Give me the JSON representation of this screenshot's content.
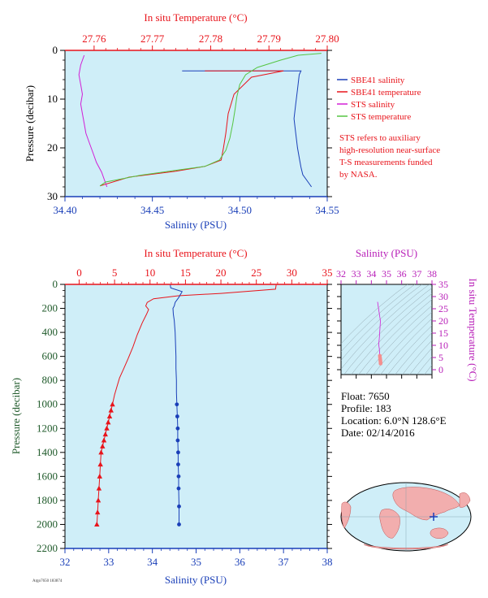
{
  "colors": {
    "plot_bg": "#cfeef8",
    "red": "#e8141b",
    "blue": "#1a3fb8",
    "magenta": "#d21fd6",
    "green": "#55c542",
    "pink": "#f48f8f",
    "dark_green": "#1f5a2a",
    "ts_axis": "#b81fb8"
  },
  "chart_data": [
    {
      "type": "line",
      "title": "",
      "top_xlabel": "In situ Temperature (°C)",
      "bottom_xlabel": "Salinity (PSU)",
      "ylabel": "Pressure (decibar)",
      "temp_range": [
        27.755,
        27.8
      ],
      "temp_ticks": [
        "27.76",
        "27.77",
        "27.78",
        "27.79",
        "27.80"
      ],
      "sal_range": [
        34.4,
        34.55
      ],
      "sal_ticks": [
        "34.40",
        "34.45",
        "34.50",
        "34.55"
      ],
      "pressure_range": [
        0,
        30
      ],
      "pressure_ticks": [
        "0",
        "10",
        "20",
        "30"
      ],
      "legend": {
        "entries": [
          "SBE41 salinity",
          "SBE41 temperature",
          "STS salinity",
          "STS temperature"
        ],
        "note": [
          "STS refers to auxiliary",
          "high-resolution near-surface",
          "T-S measurements funded",
          "by NASA."
        ]
      },
      "series": [
        {
          "name": "SBE41 salinity",
          "kind": "salinity",
          "color": "blue",
          "x": [
            34.467,
            34.535,
            34.534,
            34.533,
            34.532,
            34.531,
            34.532,
            34.533,
            34.534,
            34.535,
            34.536,
            34.538,
            34.54,
            34.541
          ],
          "y": [
            4.2,
            4.2,
            5.0,
            8.0,
            11.0,
            14.0,
            17.0,
            20.0,
            22.0,
            24.0,
            25.5,
            26.5,
            27.5,
            28.0
          ]
        },
        {
          "name": "SBE41 temperature",
          "kind": "temperature",
          "color": "red",
          "x": [
            27.779,
            27.7925,
            27.787,
            27.784,
            27.783,
            27.7826,
            27.7822,
            27.7818,
            27.779,
            27.774,
            27.766,
            27.761
          ],
          "y": [
            4.2,
            4.2,
            5.5,
            9.0,
            13.0,
            17.0,
            20.0,
            22.5,
            23.8,
            24.8,
            26.0,
            27.8
          ]
        },
        {
          "name": "STS salinity",
          "kind": "salinity",
          "color": "magenta",
          "x": [
            34.411,
            34.409,
            34.408,
            34.409,
            34.41,
            34.409,
            34.41,
            34.411,
            34.412,
            34.414,
            34.416,
            34.418,
            34.421,
            34.423,
            34.424
          ],
          "y": [
            1.0,
            3.0,
            5.0,
            7.0,
            9.0,
            11.0,
            13.0,
            15.0,
            17.0,
            19.0,
            21.0,
            23.0,
            25.0,
            27.0,
            28.0
          ]
        },
        {
          "name": "STS temperature",
          "kind": "temperature",
          "color": "green",
          "x": [
            27.799,
            27.795,
            27.792,
            27.788,
            27.786,
            27.785,
            27.7845,
            27.7842,
            27.7838,
            27.7833,
            27.7826,
            27.7815,
            27.779,
            27.774,
            27.768,
            27.762,
            27.761
          ],
          "y": [
            0.6,
            1.0,
            2.0,
            3.5,
            5.0,
            7.0,
            9.5,
            12.0,
            15.0,
            18.0,
            20.5,
            22.5,
            23.8,
            24.6,
            25.6,
            27.0,
            27.8
          ]
        }
      ]
    },
    {
      "type": "line",
      "title": "",
      "top_xlabel": "In situ Temperature (°C)",
      "bottom_xlabel": "Salinity (PSU)",
      "ylabel": "Pressure (decibar)",
      "temp_range": [
        -2,
        35
      ],
      "temp_ticks": [
        "0",
        "5",
        "10",
        "15",
        "20",
        "25",
        "30",
        "35"
      ],
      "sal_range": [
        32,
        38
      ],
      "sal_ticks": [
        "32",
        "33",
        "34",
        "35",
        "36",
        "37",
        "38"
      ],
      "pressure_range": [
        0,
        2200
      ],
      "pressure_ticks": [
        "0",
        "200",
        "400",
        "600",
        "800",
        "1000",
        "1200",
        "1400",
        "1600",
        "1800",
        "2000",
        "2200"
      ],
      "series": [
        {
          "name": "Temperature",
          "kind": "temperature",
          "color": "red",
          "marker": "triangle-from",
          "x": [
            27.8,
            27.7,
            20.0,
            14.0,
            10.5,
            9.6,
            9.4,
            9.8,
            9.5,
            8.9,
            8.2,
            7.6,
            6.9,
            6.3,
            5.7,
            5.3,
            5.0,
            4.7,
            4.5,
            4.3,
            4.1,
            3.9,
            3.7,
            3.5,
            3.3,
            3.1,
            3.0,
            2.9,
            2.8,
            2.7,
            2.6,
            2.5
          ],
          "y": [
            5,
            40,
            75,
            95,
            120,
            150,
            180,
            210,
            250,
            320,
            420,
            520,
            620,
            700,
            780,
            860,
            920,
            1000,
            1050,
            1100,
            1150,
            1200,
            1250,
            1300,
            1350,
            1400,
            1500,
            1600,
            1700,
            1800,
            1900,
            2000
          ],
          "marker_start": 17
        },
        {
          "name": "Salinity",
          "kind": "salinity",
          "color": "blue",
          "marker": "dot-from",
          "x": [
            34.41,
            34.42,
            34.68,
            34.6,
            34.52,
            34.5,
            34.47,
            34.48,
            34.5,
            34.52,
            34.53,
            34.54,
            34.54,
            34.55,
            34.55,
            34.56,
            34.57,
            34.58,
            34.58,
            34.59,
            34.59,
            34.6,
            34.6,
            34.61,
            34.61
          ],
          "y": [
            5,
            30,
            60,
            110,
            150,
            180,
            200,
            250,
            300,
            400,
            500,
            600,
            700,
            800,
            900,
            1000,
            1100,
            1200,
            1300,
            1400,
            1500,
            1600,
            1700,
            1850,
            2000
          ],
          "marker_start": 15
        }
      ]
    },
    {
      "type": "scatter",
      "title": "",
      "top_xlabel": "Salinity (PSU)",
      "ylabel": "In situ Temperature (°C)",
      "sal_range": [
        32,
        38
      ],
      "sal_ticks": [
        "32",
        "33",
        "34",
        "35",
        "36",
        "37",
        "38"
      ],
      "temp_range": [
        -2,
        35
      ],
      "temp_ticks": [
        "0",
        "5",
        "10",
        "15",
        "20",
        "25",
        "30",
        "35"
      ],
      "isopycnals": 18,
      "series": [
        {
          "name": "T-S",
          "color": "pink",
          "x": [
            34.41,
            34.6,
            34.54,
            34.49,
            34.5,
            34.53,
            34.54,
            34.55,
            34.56,
            34.57,
            34.58,
            34.59,
            34.6,
            34.61,
            34.61
          ],
          "y": [
            27.8,
            20.0,
            14.0,
            10.5,
            9.6,
            8.5,
            7.5,
            6.5,
            5.7,
            5.0,
            4.5,
            4.0,
            3.5,
            3.0,
            2.5
          ]
        }
      ]
    }
  ],
  "info": {
    "float": "Float:  7650",
    "profile": "Profile:  183",
    "location": "Location:  6.0°N  128.6°E",
    "date": "Date:  02/14/2016"
  },
  "map": {
    "marker_lon": 128.6,
    "marker_lat": 6.0
  },
  "footer": {
    "stamp": "Argo7650 183874"
  }
}
